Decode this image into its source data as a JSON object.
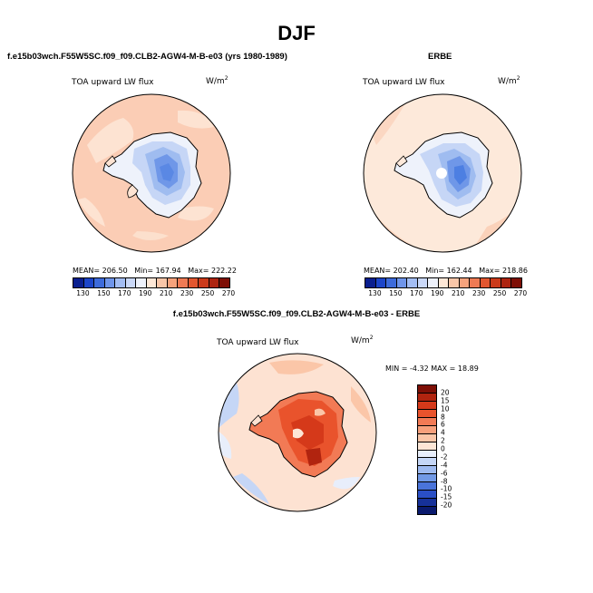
{
  "title": "DJF",
  "panels": {
    "model": {
      "header": "f.e15b03wch.F55W5SC.f09_f09.CLB2-AGW4-M-B-e03 (yrs 1980-1989)",
      "map_title": "TOA upward LW flux",
      "units_base": "W/m",
      "units_exp": "2",
      "stats": {
        "mean": "MEAN= 206.50",
        "min": "Min= 167.94",
        "max": "Max= 222.22"
      }
    },
    "obs": {
      "header": "ERBE",
      "map_title": "TOA upward LW flux",
      "units_base": "W/m",
      "units_exp": "2",
      "stats": {
        "mean": "MEAN= 202.40",
        "min": "Min= 162.44",
        "max": "Max= 218.86"
      }
    },
    "diff": {
      "header": "f.e15b03wch.F55W5SC.f09_f09.CLB2-AGW4-M-B-e03 - ERBE",
      "map_title": "TOA upward LW flux",
      "units_base": "W/m",
      "units_exp": "2",
      "minmax": "MIN = -4.32 MAX = 18.89"
    }
  },
  "colorbar_abs": {
    "ticks": [
      "130",
      "150",
      "170",
      "190",
      "210",
      "230",
      "250",
      "270"
    ],
    "colors": [
      "#0a1f8f",
      "#1c45c9",
      "#3d6bdb",
      "#6f95ea",
      "#a3bdf3",
      "#cad8f8",
      "#edf1fb",
      "#fde7d6",
      "#f9c6a8",
      "#f5a27c",
      "#ee7a54",
      "#e2562f",
      "#cb3a1b",
      "#ad2410",
      "#7e0f06"
    ]
  },
  "colorbar_diff": {
    "ticks": [
      "20",
      "15",
      "10",
      "8",
      "6",
      "4",
      "2",
      "0",
      "-2",
      "-4",
      "-6",
      "-8",
      "-10",
      "-15",
      "-20"
    ],
    "colors": [
      "#7e0f06",
      "#b1240f",
      "#d5391a",
      "#e9532c",
      "#f27a55",
      "#f7a07c",
      "#fbc6a8",
      "#fde6d6",
      "#e8eefb",
      "#c5d6f6",
      "#9ebaf0",
      "#7199e6",
      "#4a74da",
      "#2a4fc6",
      "#163199",
      "#0a1a6e"
    ]
  },
  "map_fill": {
    "ocean_model": "#fbcdb5",
    "ocean_obs": "#fde9da",
    "ocean_diff_base": "#fde2d2",
    "ice_center_model": "#5a88e4",
    "ice_center_obs": "#4d7fe2",
    "coast_color": "#000000"
  }
}
